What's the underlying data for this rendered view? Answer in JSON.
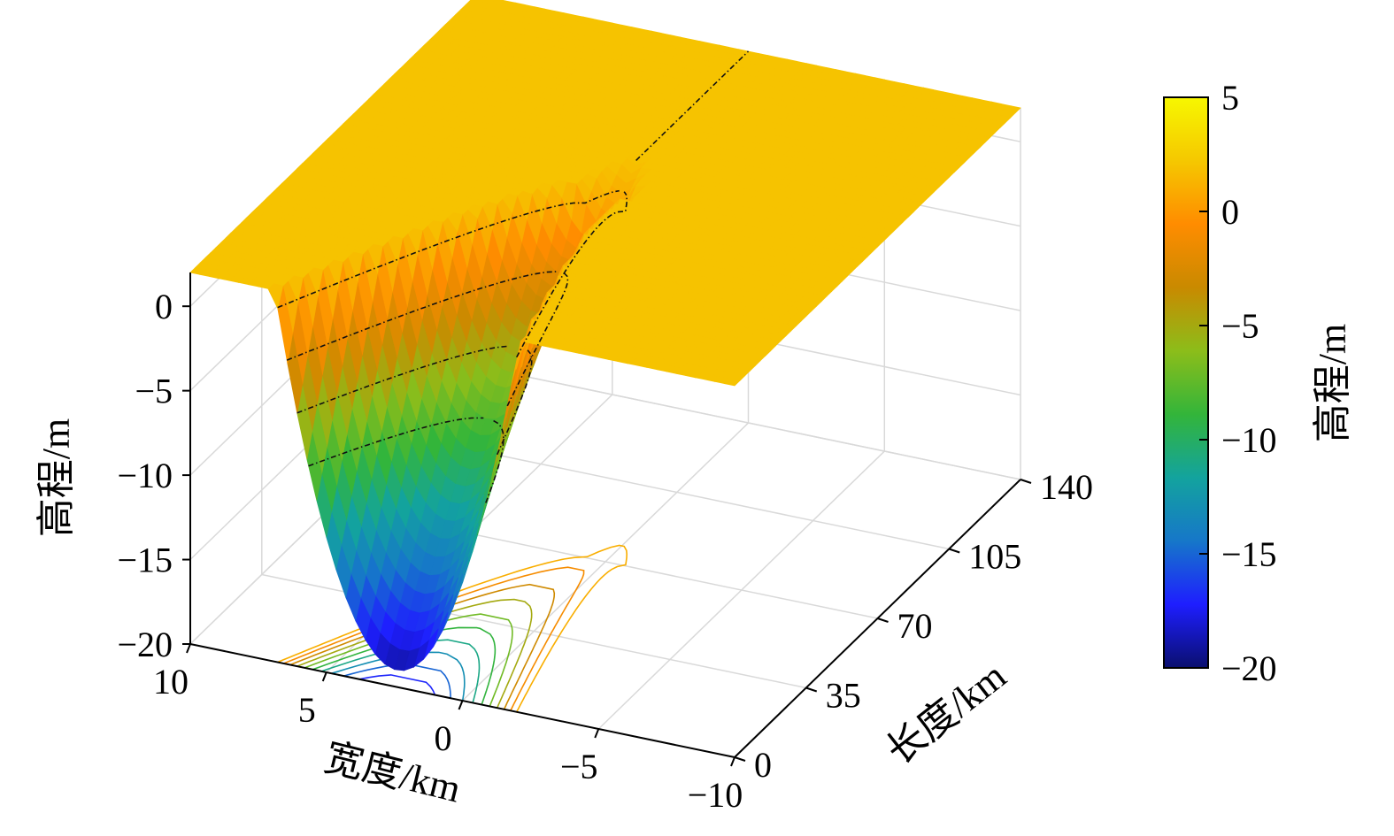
{
  "chart_data": {
    "type": "surface",
    "zlabel": "高程/m",
    "xlabel": "宽度/km",
    "ylabel": "长度/km",
    "x_ticks": [
      10,
      5,
      0,
      -5,
      -10
    ],
    "y_ticks": [
      0,
      35,
      70,
      105,
      140
    ],
    "z_ticks": [
      0,
      -5,
      -10,
      -15,
      -20
    ],
    "xlim": [
      -10,
      10
    ],
    "ylim": [
      0,
      140
    ],
    "zlim": [
      -20,
      2
    ],
    "grid": true,
    "colorbar": {
      "label": "高程/m",
      "ticks": [
        5,
        0,
        -5,
        -10,
        -15,
        -20
      ],
      "range": [
        -20,
        5
      ],
      "colors": [
        "#0a0f6e",
        "#1e1eff",
        "#1677c9",
        "#13a39e",
        "#33b53a",
        "#8cbd1a",
        "#c98a00",
        "#ff8c00",
        "#f5c800",
        "#f7f700"
      ]
    },
    "surface": {
      "plateau_elevation": 2,
      "min_elevation": -19,
      "min_location_y_km": 0,
      "channel_merge_y_km": 70,
      "plateau_color": "#f0c400"
    },
    "contour_levels_on_surface": [
      1,
      -2,
      -5,
      -8
    ],
    "contour_levels_on_floor": [
      1,
      -1,
      -3,
      -5,
      -7,
      -9,
      -11,
      -13,
      -15,
      -17
    ]
  }
}
